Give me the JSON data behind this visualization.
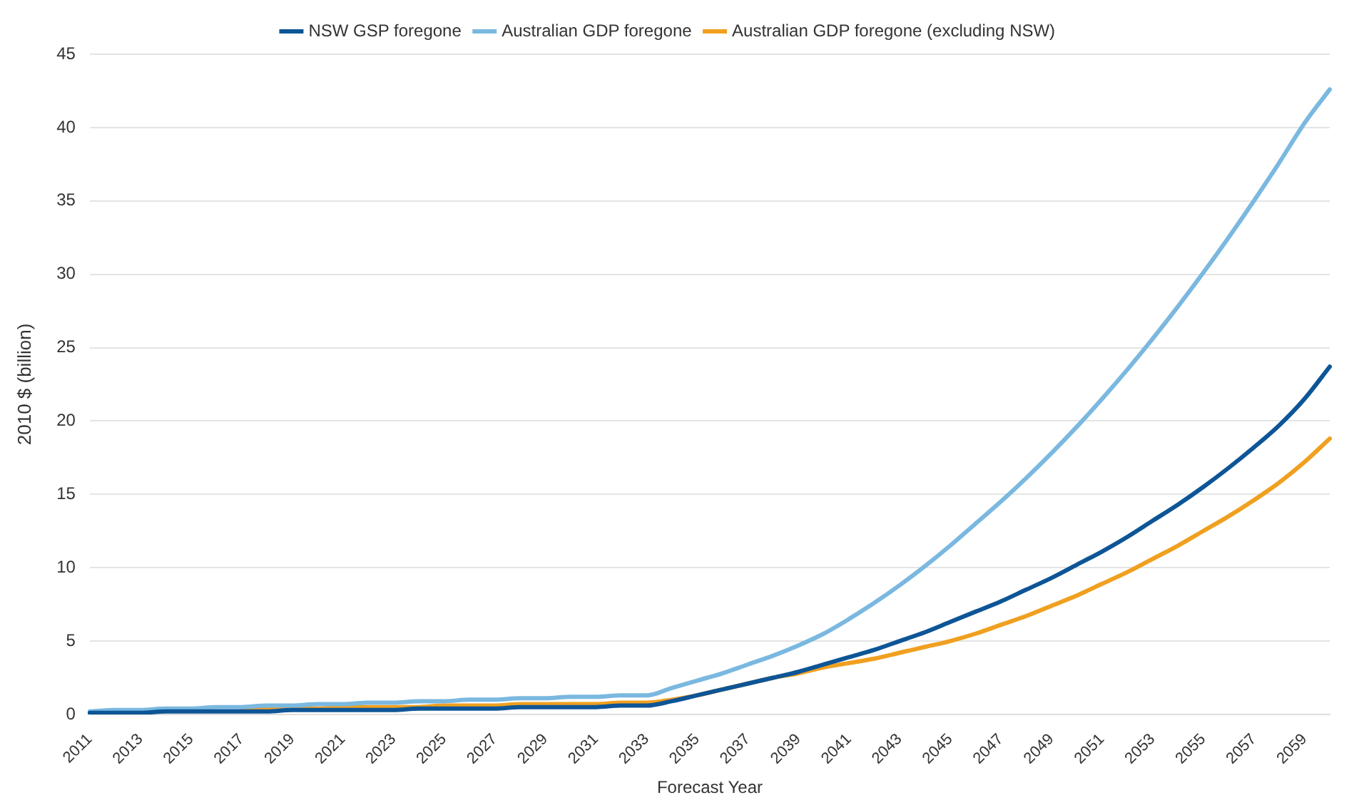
{
  "chart_data": {
    "type": "line",
    "xlabel": "Forecast Year",
    "ylabel": "2010 $ (billion)",
    "categories": [
      "2011",
      null,
      "2013",
      null,
      "2015",
      null,
      "2017",
      null,
      "2019",
      null,
      "2021",
      null,
      "2023",
      null,
      "2025",
      null,
      "2027",
      null,
      "2029",
      null,
      "2031",
      null,
      "2033",
      null,
      "2035",
      null,
      "2037",
      null,
      "2039",
      null,
      "2041",
      null,
      "2043",
      null,
      "2045",
      null,
      "2047",
      null,
      "2049",
      null,
      "2051",
      null,
      "2053",
      null,
      "2055",
      null,
      "2057",
      null,
      "2059",
      null
    ],
    "series": [
      {
        "name": "NSW GSP foregone",
        "color": "#0d5596",
        "values": [
          0.1,
          0.1,
          0.1,
          0.2,
          0.2,
          0.2,
          0.2,
          0.2,
          0.3,
          0.3,
          0.3,
          0.3,
          0.3,
          0.4,
          0.4,
          0.4,
          0.4,
          0.5,
          0.5,
          0.5,
          0.5,
          0.6,
          0.6,
          0.9,
          1.3,
          1.7,
          2.1,
          2.5,
          2.9,
          3.4,
          3.9,
          4.4,
          5.0,
          5.6,
          6.3,
          7.0,
          7.7,
          8.5,
          9.3,
          10.2,
          11.1,
          12.1,
          13.2,
          14.3,
          15.5,
          16.8,
          18.2,
          19.7,
          21.5,
          23.7
        ]
      },
      {
        "name": "Australian GDP foregone",
        "color": "#7ab8e0",
        "values": [
          0.2,
          0.3,
          0.3,
          0.4,
          0.4,
          0.5,
          0.5,
          0.6,
          0.6,
          0.7,
          0.7,
          0.8,
          0.8,
          0.9,
          0.9,
          1.0,
          1.0,
          1.1,
          1.1,
          1.2,
          1.2,
          1.3,
          1.3,
          1.8,
          2.3,
          2.8,
          3.4,
          4.0,
          4.7,
          5.5,
          6.5,
          7.6,
          8.8,
          10.1,
          11.5,
          13.0,
          14.5,
          16.1,
          17.8,
          19.6,
          21.5,
          23.5,
          25.6,
          27.8,
          30.1,
          32.5,
          35.0,
          37.6,
          40.3,
          42.6
        ]
      },
      {
        "name": "Australian GDP foregone (excluding NSW)",
        "color": "#f0a020",
        "values": [
          null,
          null,
          null,
          null,
          null,
          null,
          0.3,
          0.4,
          0.4,
          0.4,
          0.5,
          0.5,
          0.5,
          0.5,
          0.6,
          0.6,
          0.6,
          0.7,
          0.7,
          0.7,
          0.7,
          0.8,
          0.8,
          1.0,
          1.3,
          1.7,
          2.1,
          2.5,
          2.8,
          3.2,
          3.5,
          3.8,
          4.2,
          4.6,
          5.0,
          5.5,
          6.1,
          6.7,
          7.4,
          8.1,
          8.9,
          9.7,
          10.6,
          11.5,
          12.5,
          13.5,
          14.6,
          15.8,
          17.2,
          18.8
        ]
      }
    ],
    "ylim": [
      0,
      45
    ],
    "yticks": [
      0,
      5,
      10,
      15,
      20,
      25,
      30,
      35,
      40,
      45
    ],
    "grid": "y",
    "legend": "top",
    "marker": "none",
    "line_style": "solid"
  }
}
